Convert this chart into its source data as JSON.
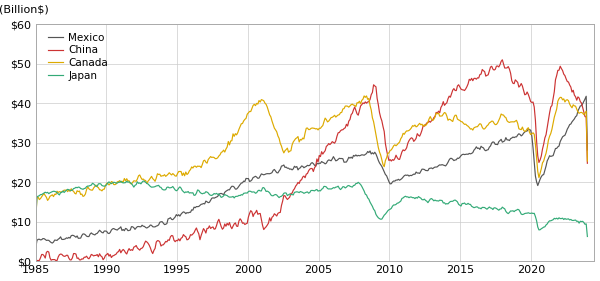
{
  "ylabel": "(Billion$)",
  "ylim": [
    0,
    60
  ],
  "yticks": [
    0,
    10,
    20,
    30,
    40,
    50,
    60
  ],
  "ytick_labels": [
    "$0",
    "$10",
    "$20",
    "$30",
    "$40",
    "$50",
    "$60"
  ],
  "xlim_start": 1985,
  "xlim_end": 2024.5,
  "xticks": [
    1985,
    1990,
    1995,
    2000,
    2005,
    2010,
    2015,
    2020
  ],
  "background_color": "#ffffff",
  "grid_color": "#cccccc",
  "line_width": 0.85,
  "series": {
    "Mexico": {
      "color": "#555555"
    },
    "China": {
      "color": "#cc3333"
    },
    "Canada": {
      "color": "#ddaa00"
    },
    "Japan": {
      "color": "#33aa77"
    }
  },
  "legend_order": [
    "Mexico",
    "China",
    "Canada",
    "Japan"
  ]
}
